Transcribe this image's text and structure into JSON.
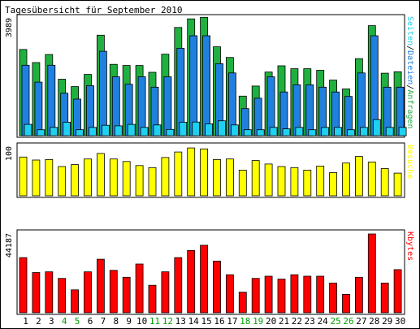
{
  "title": "Tagesübersicht für September 2010",
  "colors": {
    "weekday_label": "#000000",
    "weekend_label": "#00a000",
    "anfragen": "#20b040",
    "dateien": "#2080e0",
    "seiten": "#20d0f0",
    "besuche": "#ffff00",
    "kbytes": "#ff0000"
  },
  "chart_data": {
    "type": "bar",
    "categories": [
      "1",
      "2",
      "3",
      "4",
      "5",
      "6",
      "7",
      "8",
      "9",
      "10",
      "11",
      "12",
      "13",
      "14",
      "15",
      "16",
      "17",
      "18",
      "19",
      "20",
      "21",
      "22",
      "23",
      "24",
      "25",
      "26",
      "27",
      "28",
      "29",
      "30"
    ],
    "weekend_days": [
      "4",
      "5",
      "11",
      "12",
      "18",
      "19",
      "25",
      "26"
    ],
    "panels": [
      {
        "ymax_label": "3989",
        "ylim": [
          0,
          3989
        ],
        "legend": [
          {
            "text": "Seiten",
            "color": "#20d0f0"
          },
          {
            "text": "/",
            "color": "#000000"
          },
          {
            "text": "Dateien",
            "color": "#2080e0"
          },
          {
            "text": "/",
            "color": "#000000"
          },
          {
            "text": "Anfragen",
            "color": "#20b040"
          }
        ],
        "series": [
          {
            "name": "Anfragen",
            "color": "#20b040",
            "values": [
              2900,
              2460,
              2730,
              1900,
              1650,
              2060,
              3380,
              2400,
              2360,
              2360,
              2130,
              2740,
              3640,
              3930,
              3980,
              2990,
              2630,
              1330,
              1670,
              2140,
              2350,
              2250,
              2250,
              2200,
              1870,
              1570,
              2590,
              3700,
              2100,
              2150
            ]
          },
          {
            "name": "Dateien",
            "color": "#2080e0",
            "values": [
              2370,
              1800,
              2370,
              1430,
              1230,
              1680,
              2840,
              1980,
              1730,
              1980,
              1630,
              1980,
              2940,
              3360,
              3360,
              2420,
              2110,
              910,
              1260,
              1980,
              1470,
              1710,
              1710,
              1630,
              1470,
              1320,
              2110,
              3360,
              1630,
              1630
            ]
          },
          {
            "name": "Seiten",
            "color": "#20d0f0",
            "values": [
              380,
              200,
              280,
              450,
              200,
              280,
              350,
              330,
              380,
              280,
              360,
              210,
              450,
              460,
              400,
              500,
              360,
              200,
              200,
              280,
              230,
              280,
              200,
              280,
              280,
              200,
              280,
              540,
              280,
              280
            ]
          }
        ]
      },
      {
        "ymax_label": "100",
        "ylim": [
          0,
          100
        ],
        "legend": [
          {
            "text": "Besuche",
            "color": "#ffff00"
          }
        ],
        "series": [
          {
            "name": "Besuche",
            "color": "#ffff00",
            "values": [
              77,
              71,
              72,
              58,
              62,
              73,
              84,
              73,
              68,
              60,
              56,
              76,
              87,
              95,
              93,
              72,
              73,
              51,
              70,
              63,
              58,
              56,
              51,
              59,
              46,
              65,
              78,
              67,
              54,
              45
            ]
          }
        ]
      },
      {
        "ymax_label": "44187",
        "ylim": [
          0,
          44187
        ],
        "legend": [
          {
            "text": "Kbytes",
            "color": "#ff0000"
          }
        ],
        "series": [
          {
            "name": "Kbytes",
            "color": "#ff0000",
            "values": [
              30300,
              22100,
              22500,
              18900,
              12600,
              22500,
              29400,
              23300,
              19500,
              26800,
              15100,
              22500,
              30300,
              34200,
              37100,
              28400,
              20900,
              11300,
              18900,
              20100,
              18500,
              20900,
              20100,
              20100,
              16300,
              10100,
              19500,
              43300,
              16300,
              23700
            ]
          }
        ]
      }
    ]
  }
}
